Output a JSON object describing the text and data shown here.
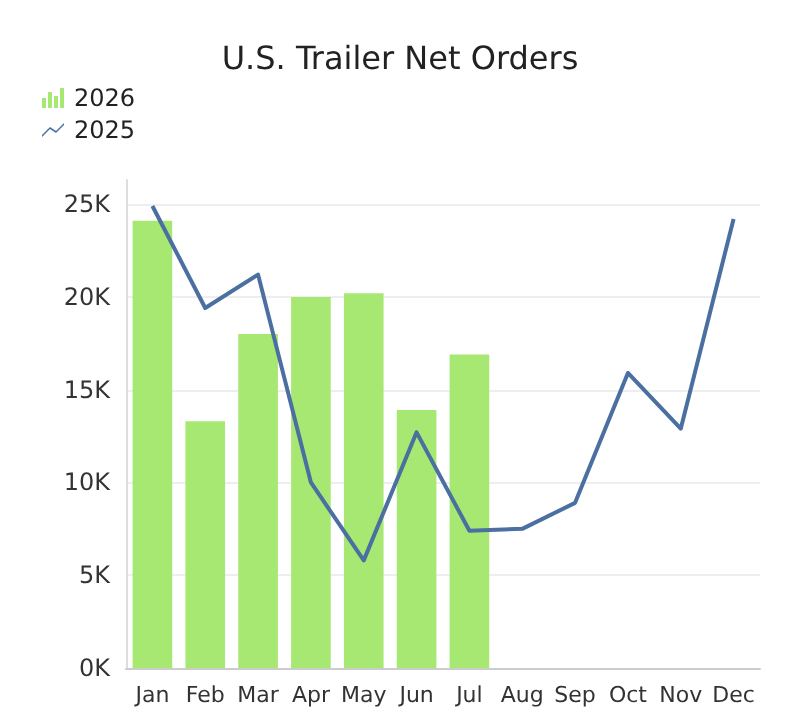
{
  "chart_data": {
    "type": "bar",
    "title": "U.S. Trailer Net Orders",
    "categories": [
      "Jan",
      "Feb",
      "Mar",
      "Apr",
      "May",
      "Jun",
      "Jul",
      "Aug",
      "Sep",
      "Oct",
      "Nov",
      "Dec"
    ],
    "series": [
      {
        "name": "2026",
        "color": "#a6e872",
        "values": [
          24100,
          13300,
          18000,
          20000,
          20200,
          13900,
          16900,
          null,
          null,
          null,
          null,
          null
        ]
      },
      {
        "name": "2025",
        "type": "line",
        "color": "#4a6fa0",
        "values": [
          24900,
          19400,
          21200,
          10000,
          5800,
          12700,
          7400,
          7500,
          8900,
          15900,
          12900,
          24200
        ]
      }
    ],
    "ylim": [
      0,
      26300
    ],
    "yticks": [
      {
        "value": 0,
        "label": "0K"
      },
      {
        "value": 5000,
        "label": "5K"
      },
      {
        "value": 10000,
        "label": "10K"
      },
      {
        "value": 15000,
        "label": "15K"
      },
      {
        "value": 20000,
        "label": "20K"
      },
      {
        "value": 25000,
        "label": "25K"
      }
    ],
    "grid": "y",
    "legend": "top left",
    "marker": "none",
    "line_style": "solid"
  }
}
